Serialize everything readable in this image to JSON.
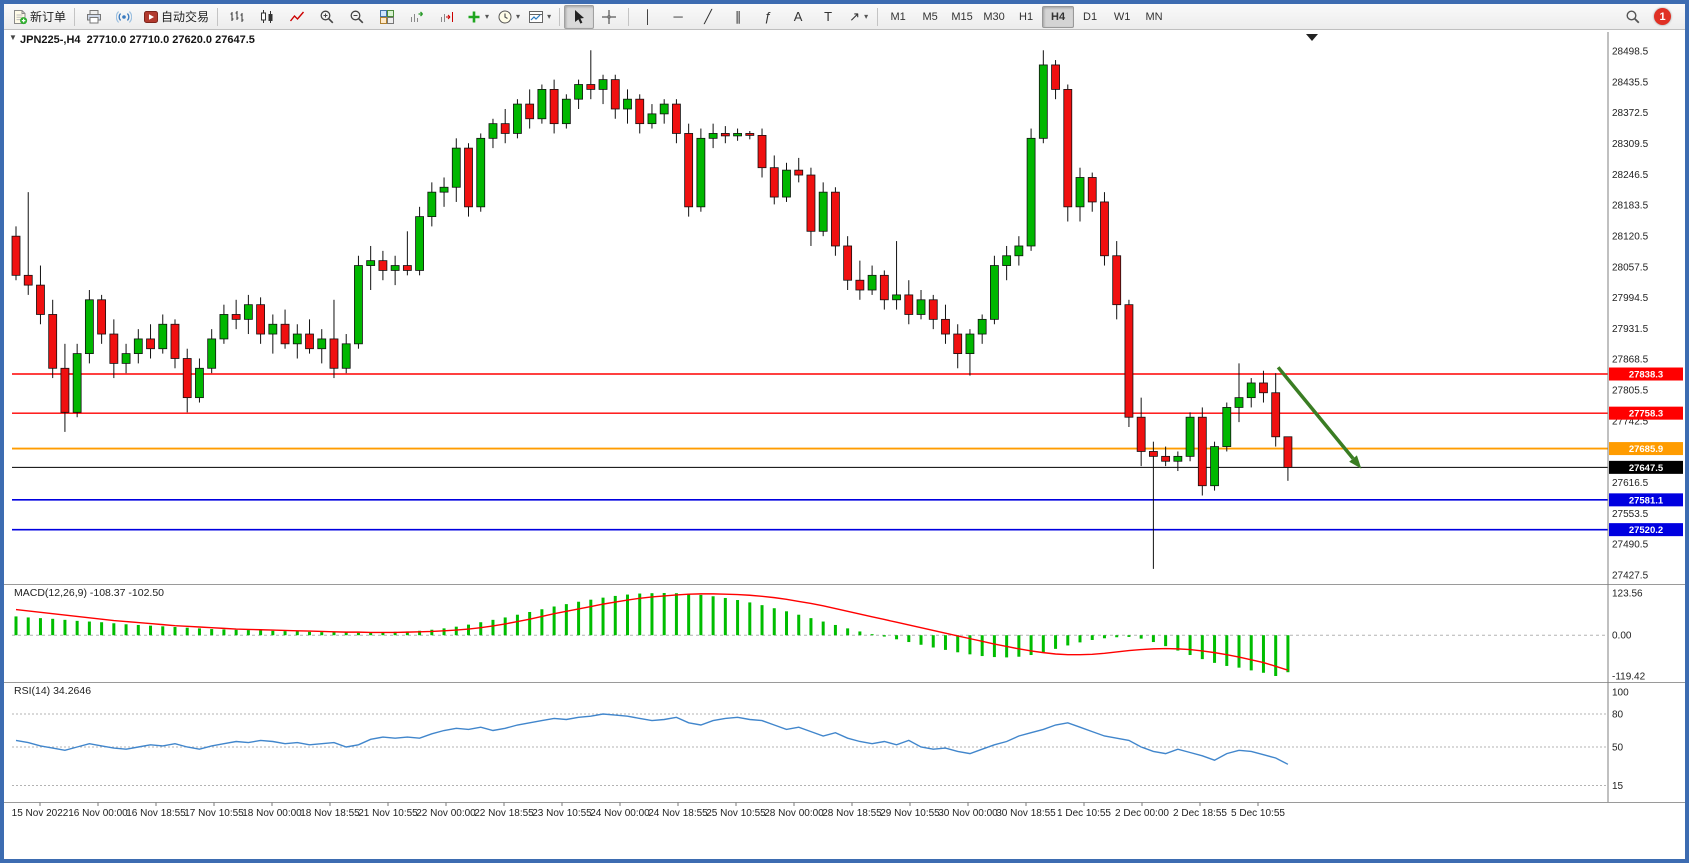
{
  "window": {
    "notification_count": "1"
  },
  "toolbar": {
    "buttons": [
      {
        "type": "button",
        "name": "new-order",
        "icon": "new-order-icon",
        "label": "新订单"
      },
      {
        "type": "sep"
      },
      {
        "type": "button",
        "name": "print",
        "icon": "print-icon"
      },
      {
        "type": "button",
        "name": "news-broadcast",
        "icon": "broadcast-icon"
      },
      {
        "type": "button",
        "name": "autotrading",
        "icon": "autotrading-icon",
        "label": "自动交易"
      },
      {
        "type": "sep"
      },
      {
        "type": "button",
        "name": "bar-chart-mode",
        "icon": "bar-chart-icon"
      },
      {
        "type": "button",
        "name": "candlestick-mode",
        "icon": "candlestick-icon"
      },
      {
        "type": "button",
        "name": "line-chart-mode",
        "icon": "line-chart-icon"
      },
      {
        "type": "button",
        "name": "zoom-in",
        "icon": "zoom-in-icon"
      },
      {
        "type": "button",
        "name": "zoom-out",
        "icon": "zoom-out-icon"
      },
      {
        "type": "button",
        "name": "tile-windows",
        "icon": "tile-windows-icon"
      },
      {
        "type": "button",
        "name": "auto-scroll",
        "icon": "auto-scroll-icon"
      },
      {
        "type": "button",
        "name": "chart-shift",
        "icon": "chart-shift-icon"
      },
      {
        "type": "button",
        "name": "indicators-list",
        "icon": "indicators-icon",
        "dropdown": true
      },
      {
        "type": "button",
        "name": "periods-list",
        "icon": "clock-icon",
        "dropdown": true
      },
      {
        "type": "button",
        "name": "templates",
        "icon": "template-icon",
        "dropdown": true
      },
      {
        "type": "sep"
      },
      {
        "type": "button",
        "name": "cursor",
        "icon": "cursor-icon",
        "active": true
      },
      {
        "type": "button",
        "name": "crosshair",
        "icon": "crosshair-icon"
      },
      {
        "type": "sep"
      },
      {
        "type": "button",
        "name": "draw-vertical-line",
        "glyph": "│"
      },
      {
        "type": "button",
        "name": "draw-horizontal-line",
        "glyph": "─"
      },
      {
        "type": "button",
        "name": "draw-trendline",
        "glyph": "╱"
      },
      {
        "type": "button",
        "name": "draw-channel",
        "glyph": "∥"
      },
      {
        "type": "button",
        "name": "draw-fibonacci",
        "glyph": "ƒ"
      },
      {
        "type": "button",
        "name": "draw-text",
        "glyph": "A"
      },
      {
        "type": "button",
        "name": "draw-text-label",
        "glyph": "T"
      },
      {
        "type": "button",
        "name": "draw-arrows",
        "glyph": "↗",
        "dropdown": true
      },
      {
        "type": "sep"
      }
    ],
    "timeframes": [
      {
        "label": "M1"
      },
      {
        "label": "M5"
      },
      {
        "label": "M15"
      },
      {
        "label": "M30"
      },
      {
        "label": "H1"
      },
      {
        "label": "H4",
        "active": true
      },
      {
        "label": "D1"
      },
      {
        "label": "W1"
      },
      {
        "label": "MN"
      }
    ]
  },
  "chart": {
    "symbol_ohlc_label": "JPN225-,H4  27710.0 27710.0 27620.0 27647.5",
    "macd_label": "MACD(12,26,9) -108.37 -102.50",
    "rsi_label": "RSI(14) 34.2646"
  },
  "chart_data": {
    "type": "candlestick",
    "symbol": "JPN225-",
    "timeframe": "H4",
    "last_ohlc": {
      "open": 27710.0,
      "high": 27710.0,
      "low": 27620.0,
      "close": 27647.5
    },
    "y_range": [
      27427.5,
      28498.5
    ],
    "price_axis_ticks": [
      "28498.5",
      "28435.5",
      "28372.5",
      "28309.5",
      "28246.5",
      "28183.5",
      "28120.5",
      "28057.5",
      "27994.5",
      "27931.5",
      "27868.5",
      "27805.5",
      "27742.5",
      "27679.5",
      "27616.5",
      "27553.5",
      "27490.5",
      "27427.5"
    ],
    "time_axis_ticks": [
      "15 Nov 2022",
      "16 Nov 00:00",
      "16 Nov 18:55",
      "17 Nov 10:55",
      "18 Nov 00:00",
      "18 Nov 18:55",
      "21 Nov 10:55",
      "22 Nov 00:00",
      "22 Nov 18:55",
      "23 Nov 10:55",
      "24 Nov 00:00",
      "24 Nov 18:55",
      "25 Nov 10:55",
      "28 Nov 00:00",
      "28 Nov 18:55",
      "29 Nov 10:55",
      "30 Nov 00:00",
      "30 Nov 18:55",
      "1 Dec 10:55",
      "2 Dec 00:00",
      "2 Dec 18:55",
      "5 Dec 10:55"
    ],
    "candles": [
      [
        28120,
        28140,
        28030,
        28040
      ],
      [
        28040,
        28210,
        28000,
        28020
      ],
      [
        28020,
        28060,
        27940,
        27960
      ],
      [
        27960,
        27990,
        27830,
        27850
      ],
      [
        27850,
        27900,
        27720,
        27760
      ],
      [
        27760,
        27900,
        27750,
        27880
      ],
      [
        27880,
        28010,
        27860,
        27990
      ],
      [
        27990,
        28000,
        27900,
        27920
      ],
      [
        27920,
        27950,
        27830,
        27860
      ],
      [
        27860,
        27900,
        27840,
        27880
      ],
      [
        27880,
        27930,
        27860,
        27910
      ],
      [
        27910,
        27940,
        27870,
        27890
      ],
      [
        27890,
        27960,
        27880,
        27940
      ],
      [
        27940,
        27950,
        27850,
        27870
      ],
      [
        27870,
        27890,
        27760,
        27790
      ],
      [
        27790,
        27870,
        27780,
        27850
      ],
      [
        27850,
        27930,
        27840,
        27910
      ],
      [
        27910,
        27980,
        27900,
        27960
      ],
      [
        27960,
        27990,
        27930,
        27950
      ],
      [
        27950,
        28000,
        27920,
        27980
      ],
      [
        27980,
        27995,
        27900,
        27920
      ],
      [
        27920,
        27960,
        27880,
        27940
      ],
      [
        27940,
        27970,
        27890,
        27900
      ],
      [
        27900,
        27940,
        27870,
        27920
      ],
      [
        27920,
        27950,
        27880,
        27890
      ],
      [
        27890,
        27930,
        27860,
        27910
      ],
      [
        27910,
        27990,
        27830,
        27850
      ],
      [
        27850,
        27920,
        27840,
        27900
      ],
      [
        27900,
        28080,
        27890,
        28060
      ],
      [
        28060,
        28100,
        28010,
        28070
      ],
      [
        28070,
        28090,
        28030,
        28050
      ],
      [
        28050,
        28080,
        28020,
        28060
      ],
      [
        28060,
        28130,
        28040,
        28050
      ],
      [
        28050,
        28180,
        28040,
        28160
      ],
      [
        28160,
        28230,
        28140,
        28210
      ],
      [
        28210,
        28240,
        28180,
        28220
      ],
      [
        28220,
        28320,
        28190,
        28300
      ],
      [
        28300,
        28310,
        28160,
        28180
      ],
      [
        28180,
        28330,
        28170,
        28320
      ],
      [
        28320,
        28360,
        28300,
        28350
      ],
      [
        28350,
        28380,
        28310,
        28330
      ],
      [
        28330,
        28400,
        28320,
        28390
      ],
      [
        28390,
        28420,
        28340,
        28360
      ],
      [
        28360,
        28430,
        28350,
        28420
      ],
      [
        28420,
        28440,
        28330,
        28350
      ],
      [
        28350,
        28410,
        28340,
        28400
      ],
      [
        28400,
        28440,
        28380,
        28430
      ],
      [
        28430,
        28500,
        28400,
        28420
      ],
      [
        28420,
        28450,
        28390,
        28440
      ],
      [
        28440,
        28450,
        28360,
        28380
      ],
      [
        28380,
        28420,
        28350,
        28400
      ],
      [
        28400,
        28410,
        28330,
        28350
      ],
      [
        28350,
        28390,
        28340,
        28370
      ],
      [
        28370,
        28400,
        28350,
        28390
      ],
      [
        28390,
        28400,
        28310,
        28330
      ],
      [
        28330,
        28350,
        28160,
        28180
      ],
      [
        28180,
        28340,
        28170,
        28320
      ],
      [
        28320,
        28350,
        28300,
        28330
      ],
      [
        28330,
        28345,
        28310,
        28325
      ],
      [
        28325,
        28340,
        28315,
        28330
      ],
      [
        28330,
        28335,
        28318,
        28326
      ],
      [
        28326,
        28340,
        28240,
        28260
      ],
      [
        28260,
        28285,
        28185,
        28200
      ],
      [
        28200,
        28270,
        28190,
        28255
      ],
      [
        28255,
        28280,
        28230,
        28245
      ],
      [
        28245,
        28260,
        28100,
        28130
      ],
      [
        28130,
        28230,
        28120,
        28210
      ],
      [
        28210,
        28220,
        28080,
        28100
      ],
      [
        28100,
        28120,
        28010,
        28030
      ],
      [
        28030,
        28070,
        27990,
        28010
      ],
      [
        28010,
        28060,
        28000,
        28040
      ],
      [
        28040,
        28050,
        27970,
        27990
      ],
      [
        27990,
        28110,
        27970,
        28000
      ],
      [
        28000,
        28030,
        27940,
        27960
      ],
      [
        27960,
        28010,
        27950,
        27990
      ],
      [
        27990,
        28000,
        27930,
        27950
      ],
      [
        27950,
        27980,
        27900,
        27920
      ],
      [
        27920,
        27940,
        27850,
        27880
      ],
      [
        27880,
        27930,
        27835,
        27920
      ],
      [
        27920,
        27960,
        27900,
        27950
      ],
      [
        27950,
        28080,
        27940,
        28060
      ],
      [
        28060,
        28100,
        28030,
        28080
      ],
      [
        28080,
        28120,
        28060,
        28100
      ],
      [
        28100,
        28340,
        28090,
        28320
      ],
      [
        28320,
        28500,
        28310,
        28470
      ],
      [
        28470,
        28480,
        28400,
        28420
      ],
      [
        28420,
        28430,
        28150,
        28180
      ],
      [
        28180,
        28260,
        28150,
        28240
      ],
      [
        28240,
        28250,
        28170,
        28190
      ],
      [
        28190,
        28210,
        28060,
        28080
      ],
      [
        28080,
        28110,
        27950,
        27980
      ],
      [
        27980,
        27990,
        27730,
        27750
      ],
      [
        27750,
        27790,
        27650,
        27680
      ],
      [
        27680,
        27700,
        27440,
        27670
      ],
      [
        27670,
        27690,
        27650,
        27660
      ],
      [
        27660,
        27680,
        27640,
        27670
      ],
      [
        27670,
        27760,
        27660,
        27750
      ],
      [
        27750,
        27770,
        27590,
        27610
      ],
      [
        27610,
        27700,
        27600,
        27690
      ],
      [
        27690,
        27780,
        27680,
        27770
      ],
      [
        27770,
        27860,
        27740,
        27790
      ],
      [
        27790,
        27830,
        27770,
        27820
      ],
      [
        27820,
        27845,
        27780,
        27800
      ],
      [
        27800,
        27840,
        27690,
        27710
      ],
      [
        27710,
        27710,
        27620,
        27647.5
      ]
    ],
    "levels": [
      {
        "price": 27838.3,
        "color": "#ff0000",
        "width": 1.4
      },
      {
        "price": 27758.3,
        "color": "#ff0000",
        "width": 1.4
      },
      {
        "price": 27685.9,
        "color": "#ff9c00",
        "width": 1.8
      },
      {
        "price": 27647.5,
        "color": "#000000",
        "width": 1.0,
        "current": true
      },
      {
        "price": 27581.1,
        "color": "#0000e0",
        "width": 1.6
      },
      {
        "price": 27520.2,
        "color": "#0000e0",
        "width": 1.6
      }
    ],
    "arrow_annotation": {
      "from": {
        "index": 103.2,
        "price": 27852
      },
      "to": {
        "index": 110,
        "price": 27645
      },
      "color": "#3a7d23"
    },
    "indicators": {
      "macd": {
        "name": "MACD(12,26,9)",
        "value": -108.37,
        "signal": -102.5,
        "range": [
          -119.42,
          123.56
        ],
        "axis_ticks": [
          "123.56",
          "0.00",
          "-119.42"
        ],
        "histogram": [
          55,
          52,
          50,
          48,
          45,
          42,
          40,
          38,
          35,
          32,
          30,
          28,
          26,
          24,
          22,
          20,
          18,
          17,
          16,
          15,
          14,
          13,
          12,
          11,
          10,
          9,
          8,
          8,
          7,
          8,
          9,
          10,
          11,
          13,
          16,
          20,
          25,
          31,
          38,
          45,
          52,
          60,
          68,
          76,
          84,
          91,
          98,
          104,
          110,
          115,
          119,
          122,
          123,
          123.56,
          123,
          121,
          118,
          114,
          109,
          103,
          96,
          88,
          79,
          70,
          60,
          50,
          40,
          30,
          20,
          11,
          3,
          -4,
          -12,
          -20,
          -28,
          -36,
          -43,
          -50,
          -56,
          -61,
          -64,
          -65,
          -63,
          -58,
          -50,
          -40,
          -30,
          -21,
          -14,
          -9,
          -6,
          -5,
          -10,
          -20,
          -32,
          -45,
          -58,
          -70,
          -81,
          -90,
          -95,
          -103,
          -110,
          -119.42,
          -108.37
        ],
        "signal_line": [
          75,
          71,
          67,
          63,
          59,
          55,
          51,
          47,
          43,
          40,
          37,
          34,
          31,
          28,
          26,
          24,
          22,
          20,
          18,
          17,
          16,
          15,
          14,
          13,
          12,
          11,
          10,
          9,
          9,
          8,
          8,
          8,
          9,
          10,
          11,
          13,
          15,
          18,
          22,
          27,
          33,
          40,
          47,
          55,
          63,
          70,
          77,
          84,
          91,
          97,
          103,
          108,
          112,
          115,
          118,
          120,
          121,
          121,
          120,
          119,
          117,
          114,
          110,
          105,
          99,
          93,
          86,
          78,
          70,
          62,
          54,
          46,
          38,
          30,
          22,
          14,
          6,
          -2,
          -10,
          -18,
          -26,
          -33,
          -40,
          -46,
          -51,
          -55,
          -57,
          -57,
          -56,
          -53,
          -49,
          -45,
          -42,
          -40,
          -39,
          -40,
          -42,
          -46,
          -51,
          -57,
          -64,
          -72,
          -80,
          -91,
          -102.5
        ]
      },
      "rsi": {
        "name": "RSI(14)",
        "value": 34.2646,
        "range": [
          0,
          100
        ],
        "axis_ticks": [
          "100",
          "80",
          "50",
          "15"
        ],
        "level_lines": [
          80,
          50,
          15
        ],
        "values": [
          56,
          54,
          51,
          49,
          47,
          50,
          53,
          51,
          49,
          48,
          50,
          52,
          51,
          53,
          50,
          48,
          51,
          53,
          55,
          54,
          56,
          55,
          53,
          54,
          52,
          53,
          54,
          50,
          52,
          57,
          59,
          58,
          59,
          58,
          62,
          65,
          67,
          66,
          68,
          65,
          67,
          70,
          72,
          74,
          76,
          75,
          77,
          78,
          80,
          79,
          78,
          76,
          74,
          75,
          77,
          72,
          70,
          74,
          76,
          77,
          75,
          74,
          70,
          66,
          68,
          64,
          60,
          63,
          58,
          55,
          53,
          55,
          52,
          56,
          50,
          48,
          49,
          46,
          44,
          48,
          52,
          55,
          60,
          63,
          66,
          70,
          72,
          68,
          64,
          60,
          58,
          56,
          50,
          46,
          44,
          48,
          45,
          42,
          38,
          44,
          47,
          46,
          43,
          40,
          34.26
        ]
      }
    },
    "colors": {
      "bull": "#00b700",
      "bear": "#f01010",
      "candle_outline": "#111111",
      "macd_histogram": "#00bd00",
      "macd_signal": "#ff0000",
      "rsi_line": "#4186cc",
      "axis_line": "#808080",
      "grid_dash": "#b3b3b3"
    }
  }
}
